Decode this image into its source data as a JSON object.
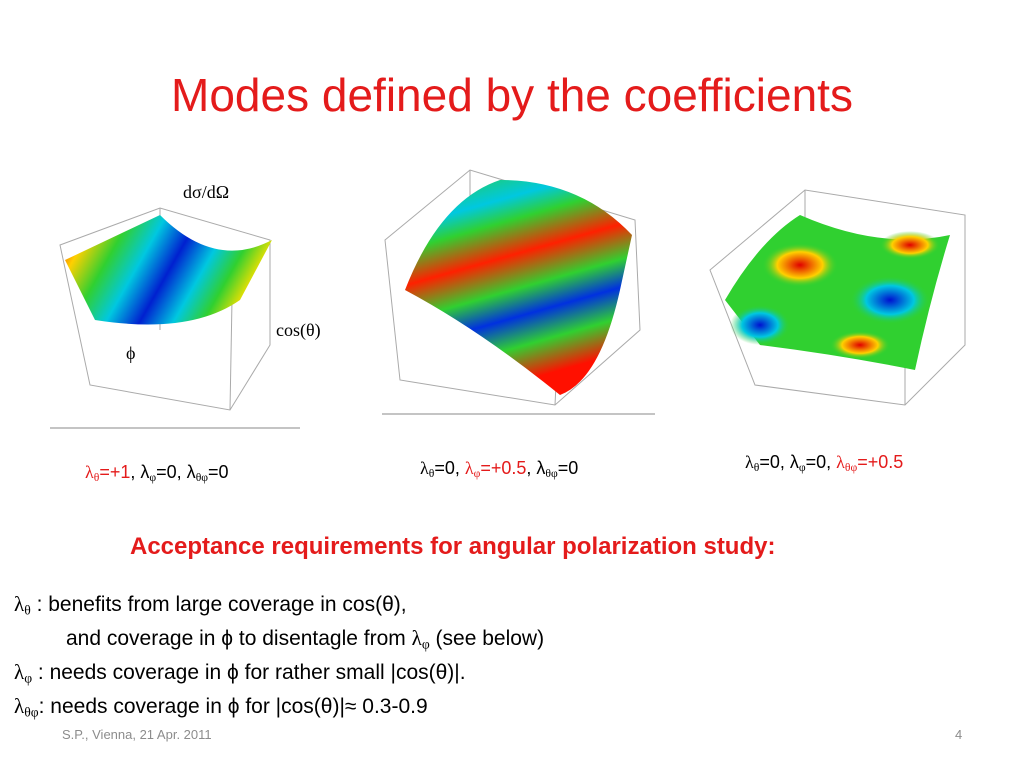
{
  "title": "Modes defined by the coefficients",
  "plots": [
    {
      "z_label": "dσ/dΩ",
      "x_label": "cos(θ)",
      "y_label": "ϕ"
    }
  ],
  "captions": [
    [
      "λ",
      "θ",
      "=+1",
      ", λ",
      "φ",
      "=0, λ",
      "θφ",
      "=0"
    ],
    [
      "λ",
      "θ",
      "=0, ",
      "λ",
      "φ",
      "=+0.5",
      ", λ",
      "θφ",
      "=0"
    ],
    [
      "λ",
      "θ",
      "=0, λ",
      "φ",
      "=0, ",
      "λ",
      "θφ",
      "=+0.5"
    ]
  ],
  "heading": "Acceptance requirements for angular polarization study:",
  "bullets": [
    [
      "λ",
      "θ",
      " : benefits from large coverage in cos(θ),"
    ],
    [
      "and coverage in ϕ to disentagle from ",
      "λ",
      "φ",
      " (see below)"
    ],
    [
      "λ",
      "φ",
      " : needs coverage in ϕ for rather small |cos(θ)|."
    ],
    [
      "λ",
      "θφ",
      ": needs coverage in ϕ for |cos(θ)|≈ 0.3-0.9"
    ]
  ],
  "footer": {
    "text": "S.P., Vienna, 21 Apr. 2011",
    "page": "4"
  }
}
